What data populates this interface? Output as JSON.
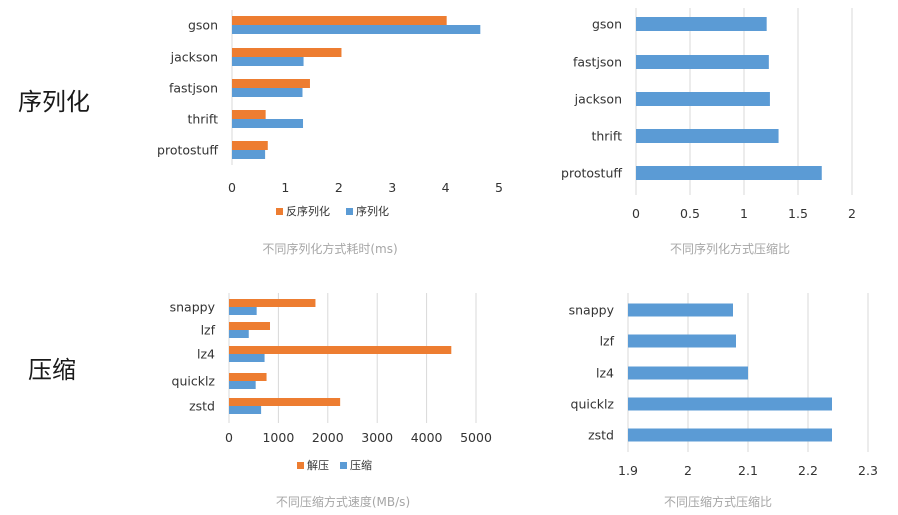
{
  "labels": {
    "serialization": "序列化",
    "compression": "压缩"
  },
  "colors": {
    "orange": "#ED7D31",
    "blue": "#5B9BD5",
    "grid": "#D9D9D9",
    "caption": "#A6A6A6"
  },
  "chart_data": [
    {
      "id": "ser-time",
      "type": "bar",
      "orientation": "horizontal",
      "title": "不同序列化方式耗时(ms)",
      "categories": [
        "gson",
        "jackson",
        "fastjson",
        "thrift",
        "protostuff"
      ],
      "series": [
        {
          "name": "反序列化",
          "color": "#ED7D31",
          "values": [
            4.02,
            2.05,
            1.46,
            0.63,
            0.67
          ]
        },
        {
          "name": "序列化",
          "color": "#5B9BD5",
          "values": [
            4.65,
            1.34,
            1.32,
            1.33,
            0.62
          ]
        }
      ],
      "xlim": [
        0,
        5
      ],
      "xticks": [
        "0",
        "1",
        "2",
        "3",
        "4",
        "5"
      ],
      "legend_position": "bottom"
    },
    {
      "id": "ser-ratio",
      "type": "bar",
      "orientation": "horizontal",
      "title": "不同序列化方式压缩比",
      "categories": [
        "gson",
        "fastjson",
        "jackson",
        "thrift",
        "protostuff"
      ],
      "series": [
        {
          "name": "",
          "color": "#5B9BD5",
          "values": [
            1.21,
            1.23,
            1.24,
            1.32,
            1.72
          ]
        }
      ],
      "xlim": [
        0,
        2
      ],
      "xticks": [
        "0",
        "0.5",
        "1",
        "1.5",
        "2"
      ]
    },
    {
      "id": "comp-speed",
      "type": "bar",
      "orientation": "horizontal",
      "title": "不同压缩方式速度(MB/s)",
      "categories": [
        "snappy",
        "lzf",
        "lz4",
        "quicklz",
        "zstd"
      ],
      "series": [
        {
          "name": "解压",
          "color": "#ED7D31",
          "values": [
            1750,
            830,
            4500,
            760,
            2250
          ]
        },
        {
          "name": "压缩",
          "color": "#5B9BD5",
          "values": [
            560,
            400,
            720,
            540,
            650
          ]
        }
      ],
      "xlim": [
        0,
        5000
      ],
      "xticks": [
        "0",
        "1000",
        "2000",
        "3000",
        "4000",
        "5000"
      ],
      "legend_position": "bottom"
    },
    {
      "id": "comp-ratio",
      "type": "bar",
      "orientation": "horizontal",
      "title": "不同压缩方式压缩比",
      "categories": [
        "snappy",
        "lzf",
        "lz4",
        "quicklz",
        "zstd"
      ],
      "series": [
        {
          "name": "",
          "color": "#5B9BD5",
          "values": [
            2.075,
            2.08,
            2.1,
            2.24,
            2.24
          ]
        }
      ],
      "xlim": [
        1.9,
        2.3
      ],
      "xticks": [
        "1.9",
        "2",
        "2.1",
        "2.2",
        "2.3"
      ]
    }
  ]
}
